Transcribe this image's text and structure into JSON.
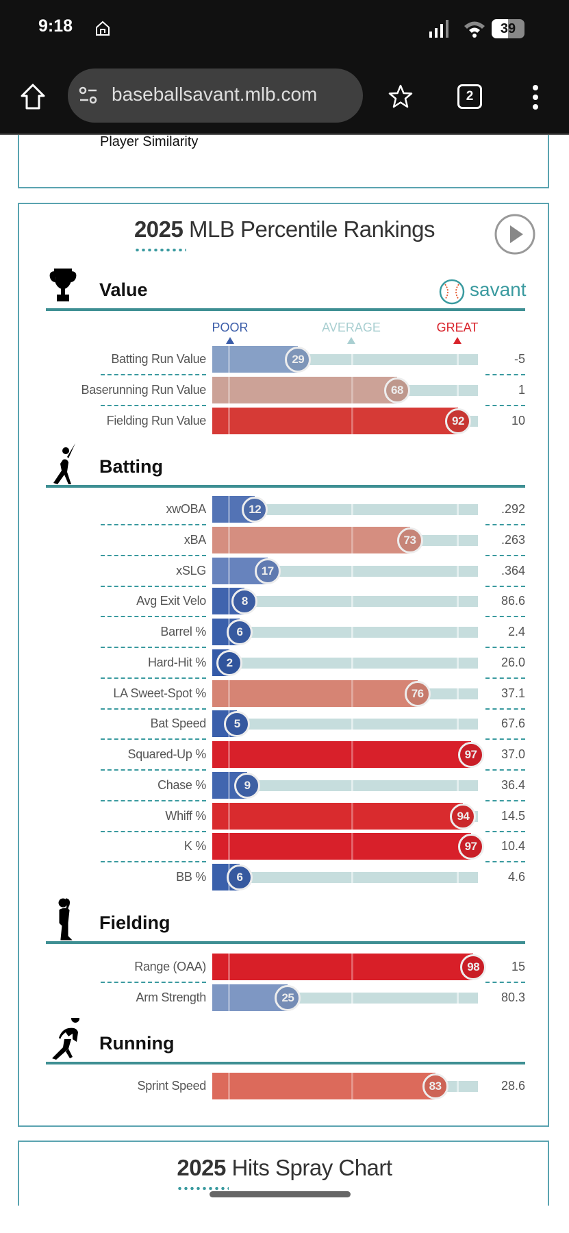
{
  "status_bar": {
    "time": "9:18",
    "battery": "39"
  },
  "browser": {
    "url": "baseballsavant.mlb.com",
    "tab_count": "2"
  },
  "previous_card": {
    "link": "Player Similarity"
  },
  "percentile_card": {
    "title_year": "2025",
    "title_rest": " MLB Percentile Rankings",
    "brand": "savant",
    "scale": {
      "poor": "POOR",
      "average": "AVERAGE",
      "great": "GREAT",
      "poor_color": "#3a5ca8",
      "average_color": "#a9cfd1",
      "great_color": "#d8222a"
    },
    "sections": [
      {
        "title": "Value",
        "icon": "trophy-icon",
        "rows": [
          {
            "label": "Batting Run Value",
            "percentile": 29,
            "value": "-5",
            "color": "#87a0c6"
          },
          {
            "label": "Baserunning Run Value",
            "percentile": 68,
            "value": "1",
            "color": "#cca297"
          },
          {
            "label": "Fielding Run Value",
            "percentile": 92,
            "value": "10",
            "color": "#d63a36"
          }
        ]
      },
      {
        "title": "Batting",
        "icon": "batter-icon",
        "rows": [
          {
            "label": "xwOBA",
            "percentile": 12,
            "value": ".292",
            "color": "#5373b5"
          },
          {
            "label": "xBA",
            "percentile": 73,
            "value": ".263",
            "color": "#d58e80"
          },
          {
            "label": "xSLG",
            "percentile": 17,
            "value": ".364",
            "color": "#6783bd"
          },
          {
            "label": "Avg Exit Velo",
            "percentile": 8,
            "value": "86.6",
            "color": "#4064ae"
          },
          {
            "label": "Barrel %",
            "percentile": 6,
            "value": "2.4",
            "color": "#3a60ab"
          },
          {
            "label": "Hard-Hit %",
            "percentile": 2,
            "value": "26.0",
            "color": "#345aa8"
          },
          {
            "label": "LA Sweet-Spot %",
            "percentile": 76,
            "value": "37.1",
            "color": "#d68474"
          },
          {
            "label": "Bat Speed",
            "percentile": 5,
            "value": "67.6",
            "color": "#3a5fab"
          },
          {
            "label": "Squared-Up %",
            "percentile": 97,
            "value": "37.0",
            "color": "#d8202a"
          },
          {
            "label": "Chase %",
            "percentile": 9,
            "value": "36.4",
            "color": "#4266af"
          },
          {
            "label": "Whiff %",
            "percentile": 94,
            "value": "14.5",
            "color": "#d92b2e"
          },
          {
            "label": "K %",
            "percentile": 97,
            "value": "10.4",
            "color": "#d8202a"
          },
          {
            "label": "BB %",
            "percentile": 6,
            "value": "4.6",
            "color": "#3a60ab"
          }
        ]
      },
      {
        "title": "Fielding",
        "icon": "fielder-icon",
        "rows": [
          {
            "label": "Range (OAA)",
            "percentile": 98,
            "value": "15",
            "color": "#d81f28"
          },
          {
            "label": "Arm Strength",
            "percentile": 25,
            "value": "80.3",
            "color": "#7e97c3"
          }
        ]
      },
      {
        "title": "Running",
        "icon": "runner-icon",
        "rows": [
          {
            "label": "Sprint Speed",
            "percentile": 83,
            "value": "28.6",
            "color": "#dc6a5b"
          }
        ]
      }
    ]
  },
  "next_card": {
    "title_year": "2025",
    "title_rest": " Hits Spray Chart"
  }
}
